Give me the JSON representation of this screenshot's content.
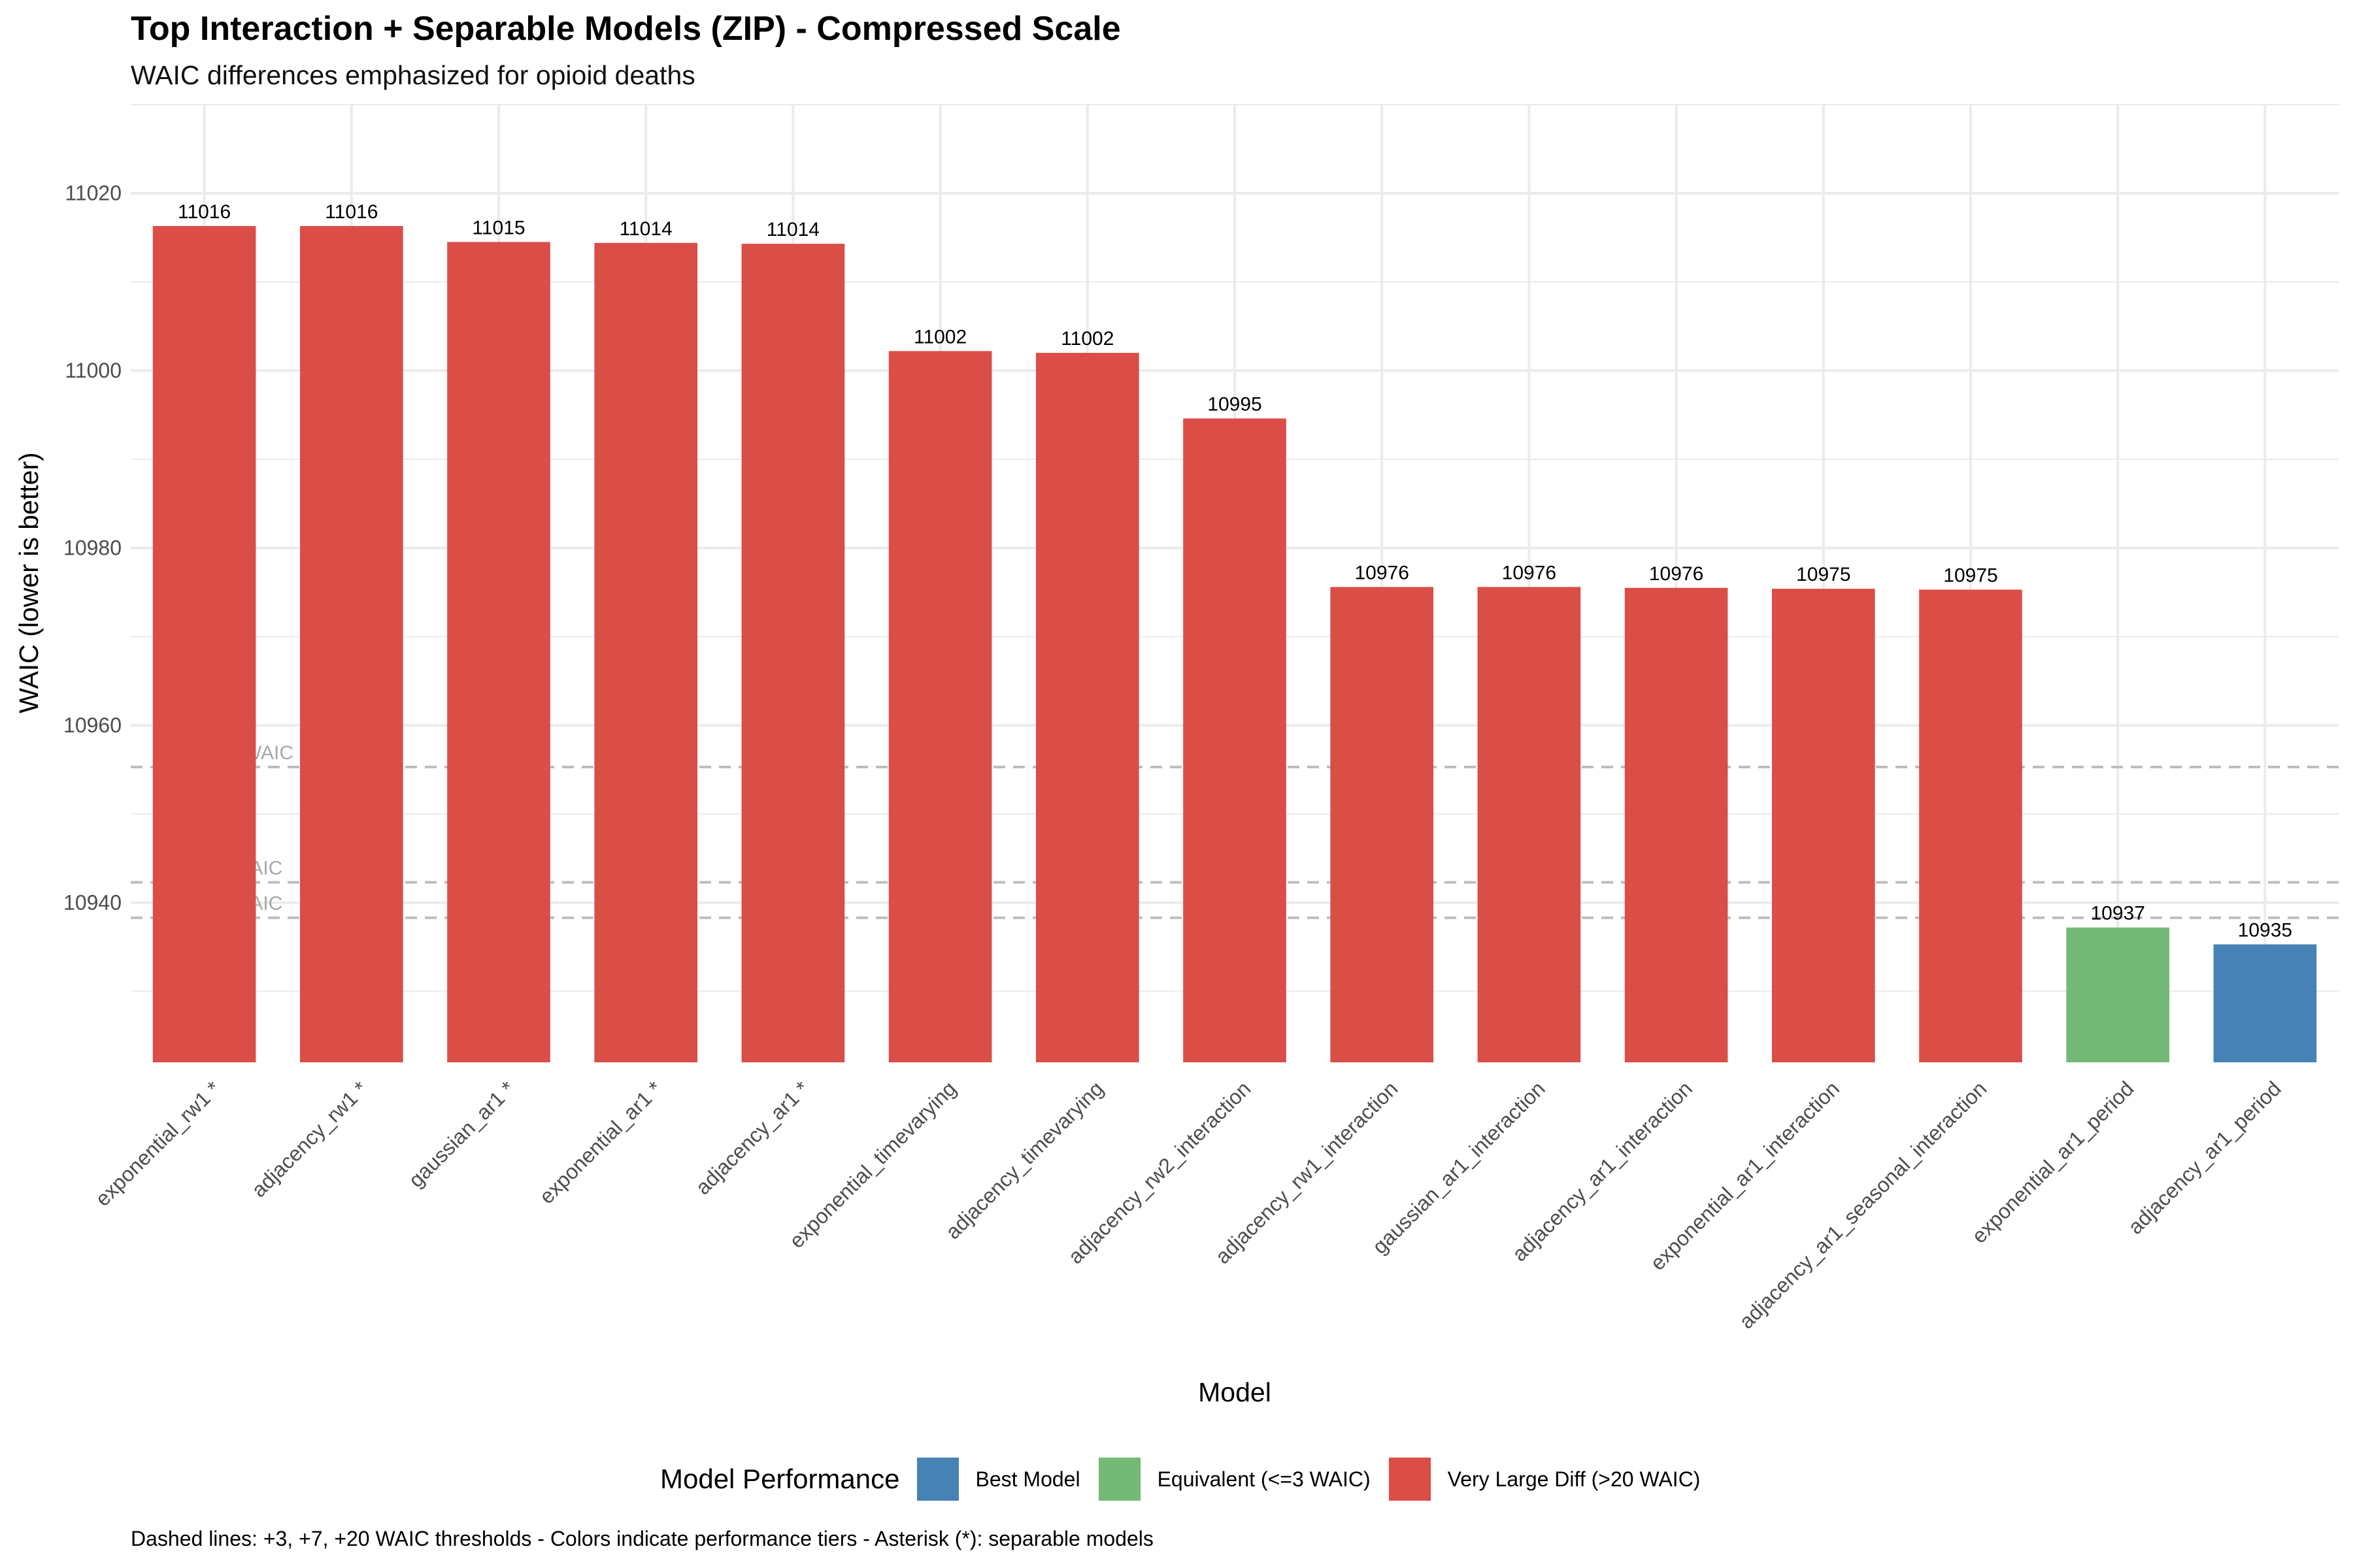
{
  "chart_data": {
    "type": "bar",
    "title": "Top Interaction + Separable Models (ZIP) - Compressed Scale",
    "subtitle": "WAIC differences emphasized for opioid deaths",
    "xlabel": "Model",
    "ylabel": "WAIC (lower is better)",
    "ylim": [
      10922,
      11030
    ],
    "yticks": [
      10940,
      10960,
      10980,
      11000,
      11020
    ],
    "grid": true,
    "categories": [
      "exponential_rw1 *",
      "adjacency_rw1 *",
      "gaussian_ar1 *",
      "exponential_ar1 *",
      "adjacency_ar1 *",
      "exponential_timevarying",
      "adjacency_timevarying",
      "adjacency_rw2_interaction",
      "adjacency_rw1_interaction",
      "gaussian_ar1_interaction",
      "adjacency_ar1_interaction",
      "exponential_ar1_interaction",
      "adjacency_ar1_seasonal_interaction",
      "exponential_ar1_period",
      "adjacency_ar1_period"
    ],
    "values": [
      11016.3,
      11016.3,
      11014.5,
      11014.4,
      11014.3,
      11002.2,
      11002.0,
      10994.6,
      10975.6,
      10975.6,
      10975.5,
      10975.4,
      10975.3,
      10937.2,
      10935.3
    ],
    "data_labels": [
      "11016",
      "11016",
      "11015",
      "11014",
      "11014",
      "11002",
      "11002",
      "10995",
      "10976",
      "10976",
      "10976",
      "10975",
      "10975",
      "10937",
      "10935"
    ],
    "tiers": [
      "Very Large Diff (>20 WAIC)",
      "Very Large Diff (>20 WAIC)",
      "Very Large Diff (>20 WAIC)",
      "Very Large Diff (>20 WAIC)",
      "Very Large Diff (>20 WAIC)",
      "Very Large Diff (>20 WAIC)",
      "Very Large Diff (>20 WAIC)",
      "Very Large Diff (>20 WAIC)",
      "Very Large Diff (>20 WAIC)",
      "Very Large Diff (>20 WAIC)",
      "Very Large Diff (>20 WAIC)",
      "Very Large Diff (>20 WAIC)",
      "Very Large Diff (>20 WAIC)",
      "Equivalent (<=3 WAIC)",
      "Best Model"
    ],
    "threshold_lines": [
      {
        "label": "+20 WAIC",
        "value": 10955.3
      },
      {
        "label": "+7 WAIC",
        "value": 10942.3
      },
      {
        "label": "+3 WAIC",
        "value": 10938.3
      }
    ],
    "legend": {
      "title": "Model Performance",
      "position": "bottom",
      "entries": [
        {
          "label": "Best Model",
          "color": "#4682b4"
        },
        {
          "label": "Equivalent (<=3 WAIC)",
          "color": "#74b976"
        },
        {
          "label": "Very Large Diff (>20 WAIC)",
          "color": "#db4d47"
        }
      ]
    },
    "caption": "Dashed lines: +3, +7, +20 WAIC thresholds - Colors indicate performance tiers - Asterisk (*): separable models"
  }
}
